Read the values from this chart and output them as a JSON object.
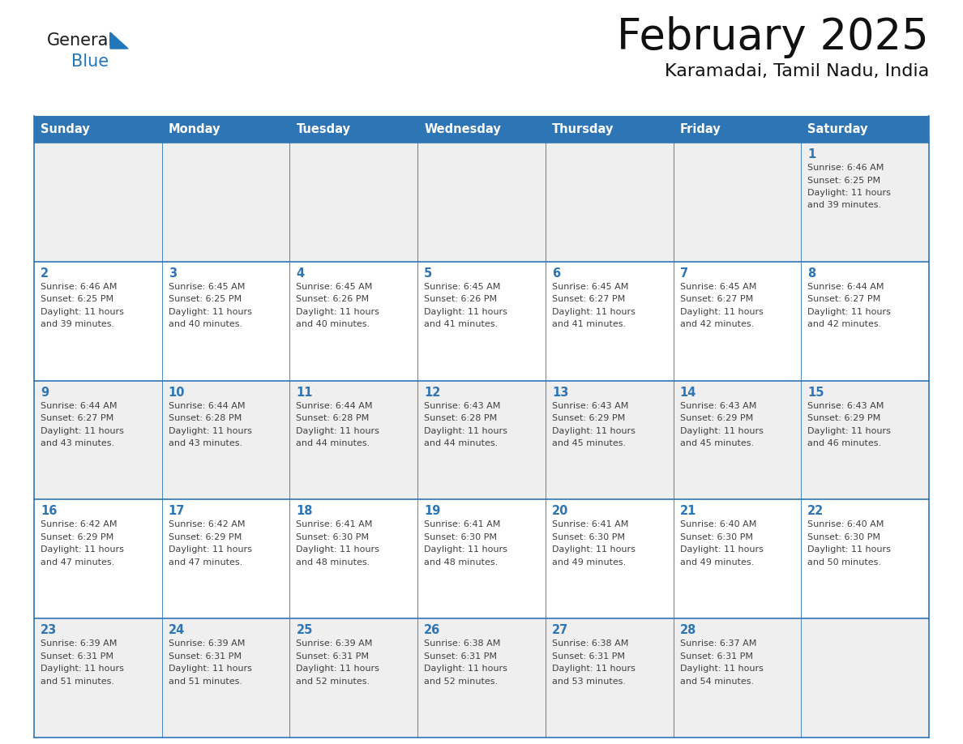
{
  "title": "February 2025",
  "subtitle": "Karamadai, Tamil Nadu, India",
  "header_bg": "#2E75B6",
  "header_text": "#FFFFFF",
  "row_bg_odd": "#EFEFEF",
  "row_bg_even": "#FFFFFF",
  "grid_line_color": "#2E75B6",
  "text_color_dark": "#404040",
  "text_color_num": "#2E75B6",
  "days_of_week": [
    "Sunday",
    "Monday",
    "Tuesday",
    "Wednesday",
    "Thursday",
    "Friday",
    "Saturday"
  ],
  "calendar_data": [
    [
      null,
      null,
      null,
      null,
      null,
      null,
      1
    ],
    [
      2,
      3,
      4,
      5,
      6,
      7,
      8
    ],
    [
      9,
      10,
      11,
      12,
      13,
      14,
      15
    ],
    [
      16,
      17,
      18,
      19,
      20,
      21,
      22
    ],
    [
      23,
      24,
      25,
      26,
      27,
      28,
      null
    ]
  ],
  "sunrise_data": {
    "1": "6:46 AM",
    "2": "6:46 AM",
    "3": "6:45 AM",
    "4": "6:45 AM",
    "5": "6:45 AM",
    "6": "6:45 AM",
    "7": "6:45 AM",
    "8": "6:44 AM",
    "9": "6:44 AM",
    "10": "6:44 AM",
    "11": "6:44 AM",
    "12": "6:43 AM",
    "13": "6:43 AM",
    "14": "6:43 AM",
    "15": "6:43 AM",
    "16": "6:42 AM",
    "17": "6:42 AM",
    "18": "6:41 AM",
    "19": "6:41 AM",
    "20": "6:41 AM",
    "21": "6:40 AM",
    "22": "6:40 AM",
    "23": "6:39 AM",
    "24": "6:39 AM",
    "25": "6:39 AM",
    "26": "6:38 AM",
    "27": "6:38 AM",
    "28": "6:37 AM"
  },
  "sunset_data": {
    "1": "6:25 PM",
    "2": "6:25 PM",
    "3": "6:25 PM",
    "4": "6:26 PM",
    "5": "6:26 PM",
    "6": "6:27 PM",
    "7": "6:27 PM",
    "8": "6:27 PM",
    "9": "6:27 PM",
    "10": "6:28 PM",
    "11": "6:28 PM",
    "12": "6:28 PM",
    "13": "6:29 PM",
    "14": "6:29 PM",
    "15": "6:29 PM",
    "16": "6:29 PM",
    "17": "6:29 PM",
    "18": "6:30 PM",
    "19": "6:30 PM",
    "20": "6:30 PM",
    "21": "6:30 PM",
    "22": "6:30 PM",
    "23": "6:31 PM",
    "24": "6:31 PM",
    "25": "6:31 PM",
    "26": "6:31 PM",
    "27": "6:31 PM",
    "28": "6:31 PM"
  },
  "daylight_data": {
    "1": "39 minutes.",
    "2": "39 minutes.",
    "3": "40 minutes.",
    "4": "40 minutes.",
    "5": "41 minutes.",
    "6": "41 minutes.",
    "7": "42 minutes.",
    "8": "42 minutes.",
    "9": "43 minutes.",
    "10": "43 minutes.",
    "11": "44 minutes.",
    "12": "44 minutes.",
    "13": "45 minutes.",
    "14": "45 minutes.",
    "15": "46 minutes.",
    "16": "47 minutes.",
    "17": "47 minutes.",
    "18": "48 minutes.",
    "19": "48 minutes.",
    "20": "49 minutes.",
    "21": "49 minutes.",
    "22": "50 minutes.",
    "23": "51 minutes.",
    "24": "51 minutes.",
    "25": "52 minutes.",
    "26": "52 minutes.",
    "27": "53 minutes.",
    "28": "54 minutes."
  },
  "logo_general_color": "#1a1a1a",
  "logo_blue_color": "#2277BB",
  "triangle_color": "#2277BB"
}
